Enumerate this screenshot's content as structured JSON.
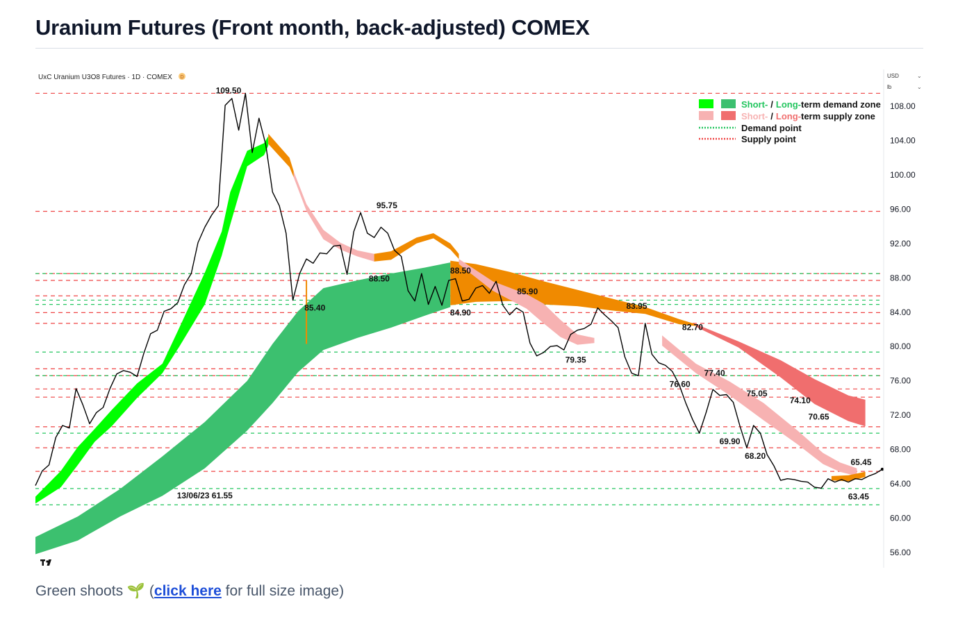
{
  "page": {
    "title": "Uranium Futures (Front month, back-adjusted) COMEX",
    "caption": {
      "prefix": "Green shoots",
      "link_text": "click here",
      "suffix": "for full size image)"
    }
  },
  "chart_data": {
    "type": "line",
    "subtitle": "UxC Uranium U3O8 Futures · 1D · COMEX",
    "badge": "D",
    "currency": "USD",
    "unit": "lb",
    "ylim": [
      54,
      110
    ],
    "y_ticks": [
      56,
      60,
      64,
      68,
      72,
      76,
      80,
      84,
      88,
      92,
      96,
      100,
      104,
      108
    ],
    "legend": {
      "position": "top-right",
      "demand_zone": {
        "short": "Short-",
        "sep": "/",
        "long": "Long-",
        "rest": "term demand zone"
      },
      "supply_zone": {
        "short": "Short-",
        "sep": "/",
        "long": "Long-",
        "rest": "term supply zone"
      },
      "demand_point": "Demand point",
      "supply_point": "Supply point"
    },
    "colors": {
      "price": "#000000",
      "short_demand": "#00ff00",
      "long_demand": "#3cc06f",
      "short_supply": "#f7b2b2",
      "long_supply": "#f06e6e",
      "neutral_zone": "#f08a00",
      "demand_line": "#22c55e",
      "supply_line": "#ef4444"
    },
    "supply_levels": [
      109.5,
      95.75,
      88.5,
      87.7,
      85.9,
      83.95,
      82.7,
      77.4,
      76.6,
      75.05,
      74.1,
      70.65,
      68.2,
      65.45
    ],
    "demand_levels": [
      88.5,
      85.4,
      84.9,
      79.35,
      76.6,
      69.9,
      63.45,
      61.55
    ],
    "annotations": [
      {
        "label": "109.50",
        "x": 0.228,
        "y": 109.5
      },
      {
        "label": "95.75",
        "x": 0.415,
        "y": 96.1
      },
      {
        "label": "88.50",
        "x": 0.502,
        "y": 88.5
      },
      {
        "label": "88.50",
        "x": 0.406,
        "y": 87.6
      },
      {
        "label": "85.90",
        "x": 0.581,
        "y": 86.1
      },
      {
        "label": "85.40",
        "x": 0.33,
        "y": 84.2
      },
      {
        "label": "84.90",
        "x": 0.502,
        "y": 83.6
      },
      {
        "label": "83.95",
        "x": 0.71,
        "y": 84.4
      },
      {
        "label": "82.70",
        "x": 0.776,
        "y": 81.9
      },
      {
        "label": "79.35",
        "x": 0.638,
        "y": 78.1
      },
      {
        "label": "77.40",
        "x": 0.802,
        "y": 76.6
      },
      {
        "label": "76.60",
        "x": 0.761,
        "y": 75.3
      },
      {
        "label": "75.05",
        "x": 0.852,
        "y": 74.2
      },
      {
        "label": "74.10",
        "x": 0.903,
        "y": 73.4
      },
      {
        "label": "70.65",
        "x": 0.925,
        "y": 71.5
      },
      {
        "label": "69.90",
        "x": 0.82,
        "y": 68.6
      },
      {
        "label": "68.20",
        "x": 0.85,
        "y": 66.9
      },
      {
        "label": "65.45",
        "x": 0.975,
        "y": 66.2
      },
      {
        "label": "63.45",
        "x": 0.972,
        "y": 62.2
      },
      {
        "label": "13/06/23 61.55",
        "x": 0.2,
        "y": 62.3
      }
    ],
    "x": [
      0,
      0.008,
      0.016,
      0.024,
      0.032,
      0.04,
      0.048,
      0.056,
      0.064,
      0.072,
      0.08,
      0.088,
      0.096,
      0.104,
      0.112,
      0.12,
      0.128,
      0.136,
      0.144,
      0.152,
      0.16,
      0.168,
      0.176,
      0.184,
      0.192,
      0.2,
      0.208,
      0.216,
      0.224,
      0.232,
      0.24,
      0.248,
      0.256,
      0.264,
      0.272,
      0.28,
      0.288,
      0.296,
      0.304,
      0.312,
      0.32,
      0.328,
      0.336,
      0.344,
      0.352,
      0.36,
      0.368,
      0.376,
      0.384,
      0.392,
      0.4,
      0.408,
      0.416,
      0.424,
      0.432,
      0.44,
      0.448,
      0.456,
      0.464,
      0.472,
      0.48,
      0.488,
      0.496,
      0.504,
      0.512,
      0.52,
      0.528,
      0.536,
      0.544,
      0.552,
      0.56,
      0.568,
      0.576,
      0.584,
      0.592,
      0.6,
      0.608,
      0.616,
      0.624,
      0.632,
      0.64,
      0.648,
      0.656,
      0.664,
      0.672,
      0.68,
      0.688,
      0.696,
      0.704,
      0.712,
      0.72,
      0.728,
      0.736,
      0.744,
      0.752,
      0.76,
      0.768,
      0.776,
      0.784,
      0.792,
      0.8,
      0.808,
      0.816,
      0.824,
      0.832,
      0.84,
      0.848,
      0.856,
      0.864,
      0.872,
      0.88,
      0.888,
      0.896,
      0.904,
      0.912,
      0.92,
      0.928,
      0.936,
      0.944,
      0.952,
      0.96,
      0.968,
      0.976,
      0.984,
      0.992,
      1.0
    ],
    "series": [
      {
        "name": "Price",
        "values": [
          63.8,
          65.5,
          66.2,
          69.4,
          70.8,
          70.5,
          75.1,
          73.2,
          71.0,
          72.3,
          72.9,
          75.1,
          76.8,
          77.2,
          77.0,
          76.5,
          79.2,
          81.5,
          81.9,
          84.1,
          84.4,
          85.1,
          87.2,
          88.5,
          92.1,
          93.9,
          95.3,
          96.4,
          108.1,
          108.9,
          105.2,
          109.5,
          102.6,
          106.6,
          103.5,
          98.0,
          96.4,
          93.2,
          85.4,
          88.5,
          90.2,
          89.7,
          90.9,
          90.8,
          91.7,
          91.8,
          88.4,
          93.4,
          95.6,
          93.2,
          92.7,
          93.9,
          93.2,
          91.2,
          90.5,
          86.5,
          85.3,
          88.5,
          84.9,
          87.0,
          84.8,
          87.7,
          87.9,
          85.3,
          85.5,
          86.8,
          87.1,
          86.2,
          87.6,
          84.8,
          83.7,
          84.5,
          84.0,
          80.4,
          78.9,
          79.3,
          80.0,
          80.1,
          79.6,
          81.4,
          81.9,
          82.1,
          82.6,
          84.5,
          83.7,
          83.0,
          82.2,
          78.8,
          76.9,
          76.6,
          82.7,
          79.1,
          78.1,
          77.8,
          77.1,
          75.6,
          73.4,
          71.5,
          69.9,
          72.3,
          75.0,
          74.3,
          74.4,
          73.5,
          70.7,
          68.2,
          70.8,
          69.9,
          67.4,
          66.1,
          64.4,
          64.6,
          64.5,
          64.3,
          64.2,
          63.6,
          63.5,
          64.6,
          64.2,
          64.5,
          64.2,
          64.6,
          64.5,
          64.9,
          65.2,
          65.7
        ]
      }
    ]
  }
}
